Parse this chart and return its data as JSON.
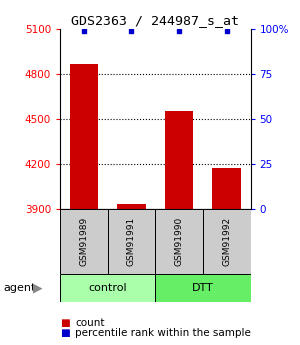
{
  "title": "GDS2363 / 244987_s_at",
  "samples": [
    "GSM91989",
    "GSM91991",
    "GSM91990",
    "GSM91992"
  ],
  "counts": [
    4870,
    3930,
    4555,
    4170
  ],
  "percentile_ranks": [
    99,
    99,
    99,
    99
  ],
  "ylim_left": [
    3900,
    5100
  ],
  "yticks_left": [
    3900,
    4200,
    4500,
    4800,
    5100
  ],
  "yticks_right": [
    0,
    25,
    50,
    75,
    100
  ],
  "bar_color": "#cc0000",
  "percentile_color": "#0000cc",
  "control_color": "#aaffaa",
  "dtt_color": "#66ee66",
  "sample_bg_color": "#cccccc",
  "legend_red_label": "count",
  "legend_blue_label": "percentile rank within the sample",
  "background_color": "#ffffff"
}
